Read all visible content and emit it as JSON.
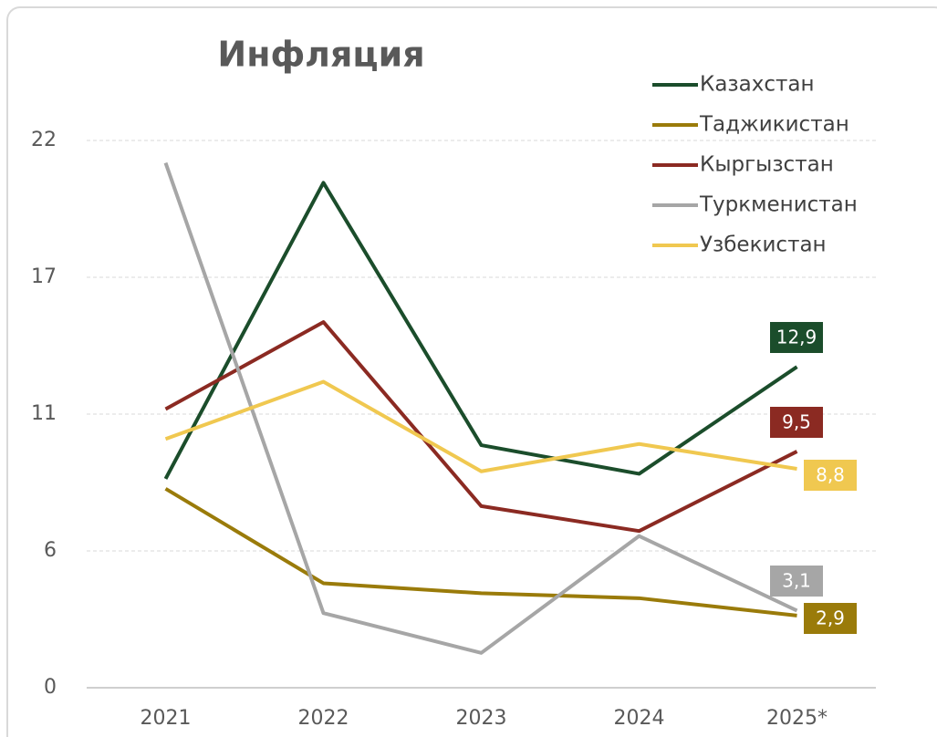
{
  "chart_data": {
    "type": "line",
    "title": "Инфляция",
    "categories": [
      "2021",
      "2022",
      "2023",
      "2024",
      "2025*"
    ],
    "ylim": [
      0,
      22
    ],
    "yticks": [
      0,
      {
        "value": 5.5,
        "label": "6"
      },
      11,
      {
        "value": 16.5,
        "label": "17"
      },
      22
    ],
    "grid": true,
    "legend": "top-right",
    "series": [
      {
        "name": "Казахстан",
        "color": "#1b4d2b",
        "values": [
          8.4,
          20.3,
          9.75,
          8.6,
          12.9
        ],
        "value_labels": [
          null,
          null,
          null,
          null,
          "12,9"
        ]
      },
      {
        "name": "Таджикистан",
        "color": "#9a7b0a",
        "values": [
          8.0,
          4.2,
          3.8,
          3.6,
          2.9
        ],
        "value_labels": [
          null,
          null,
          null,
          null,
          "2,9"
        ]
      },
      {
        "name": "Кыргызстан",
        "color": "#8b2a22",
        "values": [
          11.2,
          14.7,
          7.3,
          6.3,
          9.5
        ],
        "value_labels": [
          null,
          null,
          null,
          null,
          "9,5"
        ]
      },
      {
        "name": "Туркменистан",
        "color": "#a6a6a6",
        "values": [
          21.1,
          3.0,
          1.4,
          6.1,
          3.1
        ],
        "value_labels": [
          null,
          null,
          null,
          null,
          "3,1"
        ]
      },
      {
        "name": "Узбекистан",
        "color": "#f0c850",
        "values": [
          10.0,
          12.3,
          8.7,
          9.8,
          8.8
        ],
        "value_labels": [
          null,
          null,
          null,
          null,
          "8,8"
        ]
      }
    ]
  }
}
